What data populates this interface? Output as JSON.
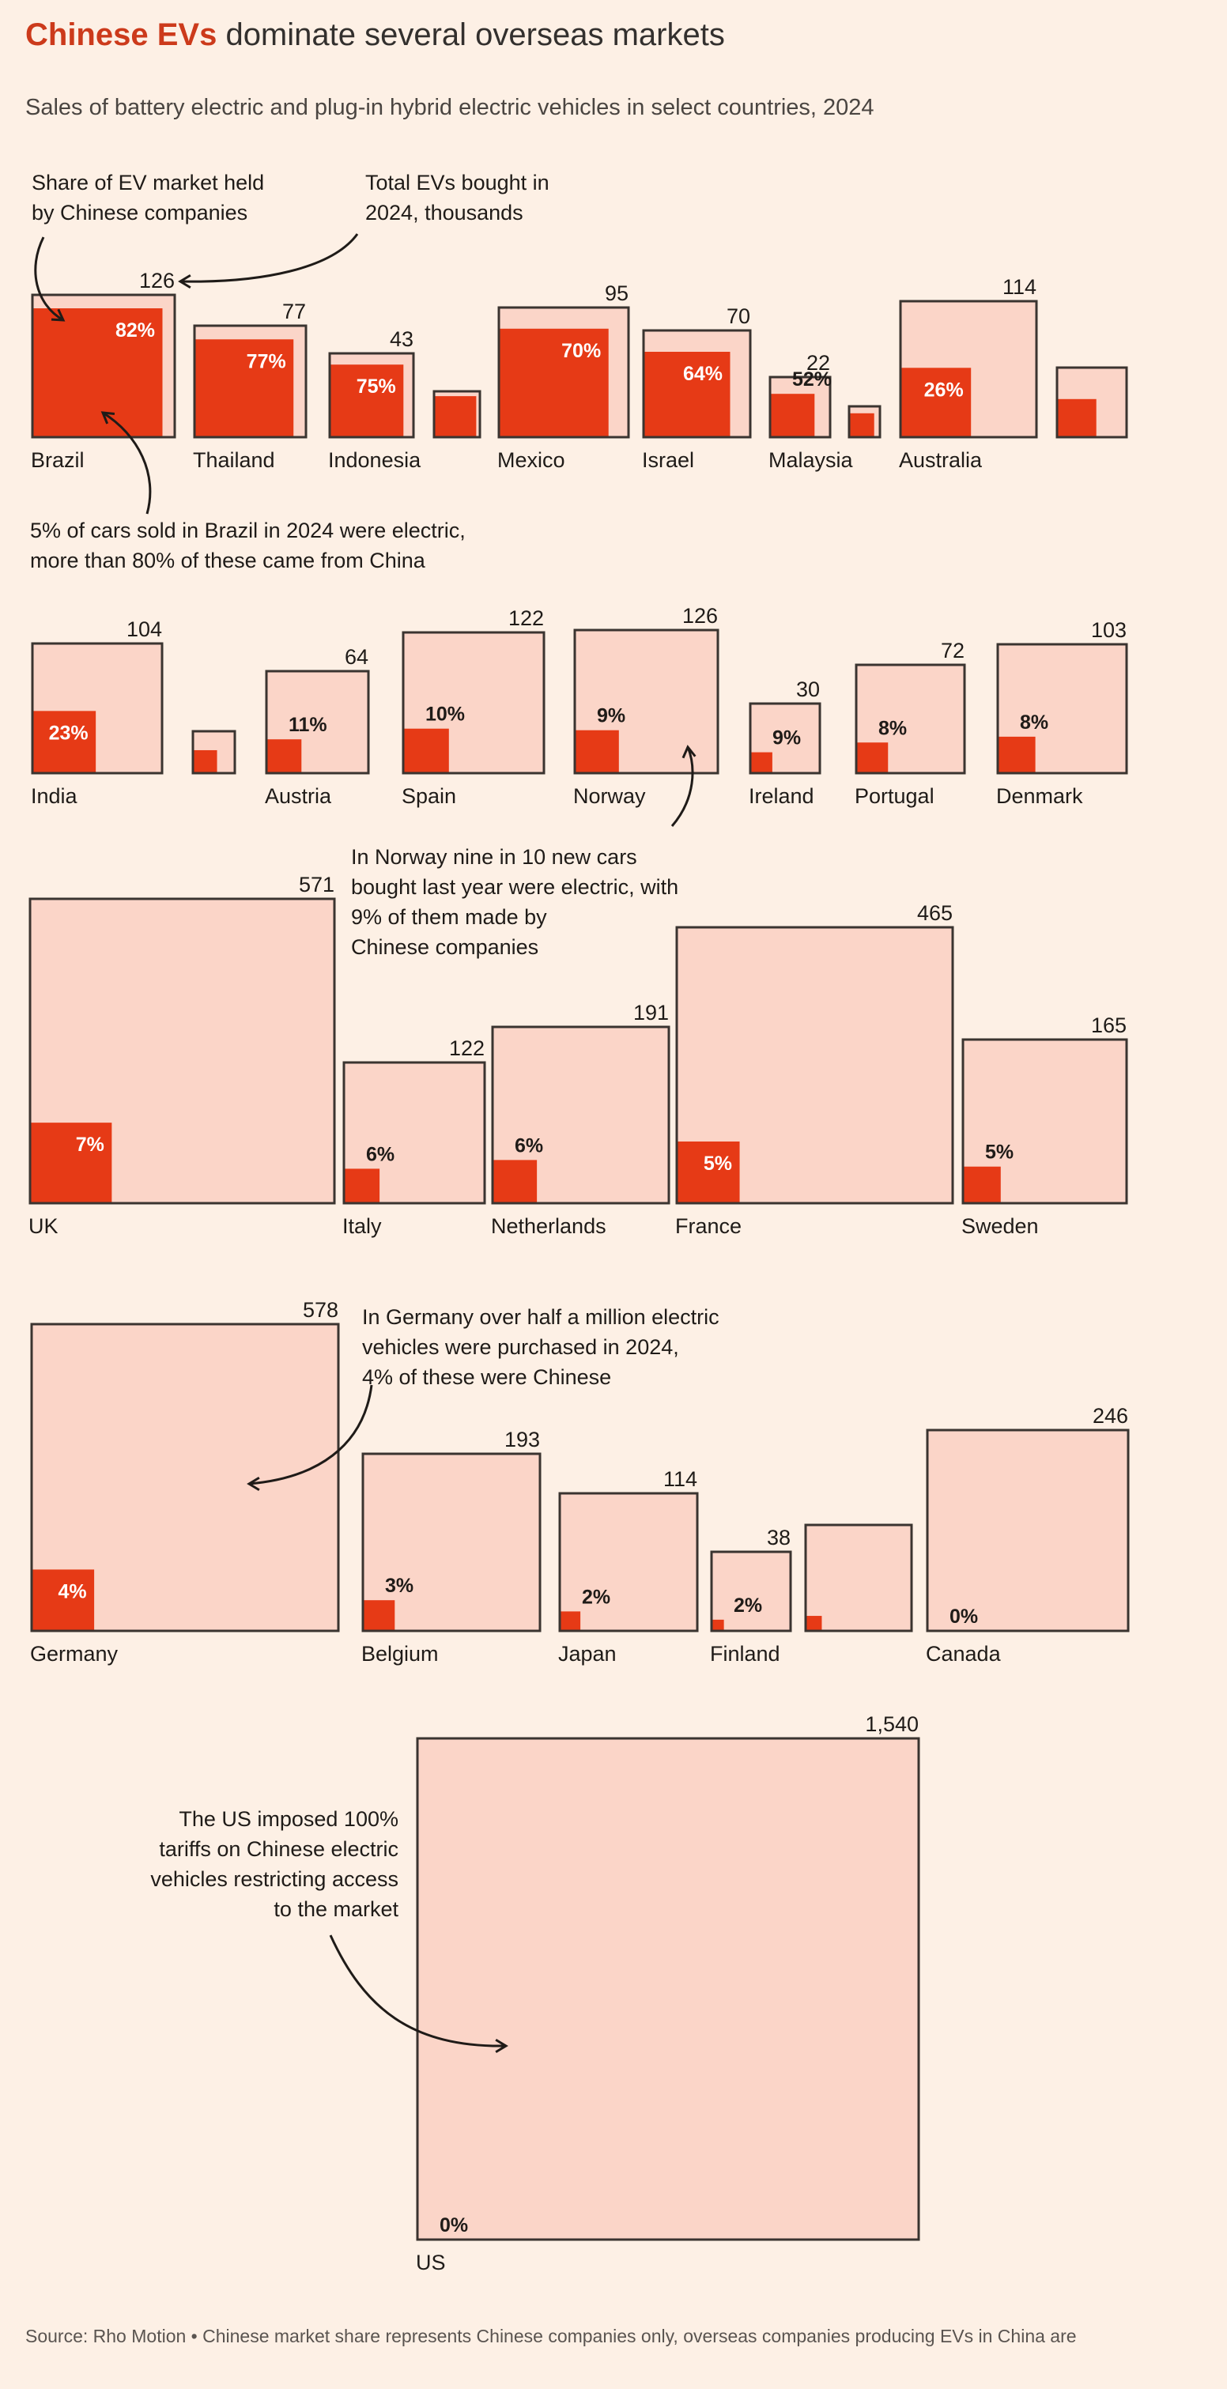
{
  "header": {
    "title_highlight": "Chinese EVs",
    "title_rest": " dominate several overseas markets",
    "subtitle": "Sales of battery electric and plug-in hybrid electric vehicles in select countries, 2024"
  },
  "chart_data": {
    "type": "proportional-square",
    "title": "Chinese EVs dominate several overseas markets",
    "subtitle": "Sales of battery electric and plug-in hybrid electric vehicles in select countries, 2024",
    "value_unit": "Total EVs bought in 2024, thousands",
    "share_unit": "Share of EV market held by Chinese companies (%)",
    "countries": [
      {
        "name": "Brazil",
        "total": "126",
        "share": 82
      },
      {
        "name": "Thailand",
        "total": "77",
        "share": 77
      },
      {
        "name": "Indonesia",
        "total": "43",
        "share": 75
      },
      {
        "name": "",
        "total": "",
        "share": 80
      },
      {
        "name": "Mexico",
        "total": "95",
        "share": 70
      },
      {
        "name": "Israel",
        "total": "70",
        "share": 64
      },
      {
        "name": "Malaysia",
        "total": "22",
        "share": 52
      },
      {
        "name": "",
        "total": "",
        "share": 60
      },
      {
        "name": "Australia",
        "total": "114",
        "share": 26
      },
      {
        "name": "",
        "total": "",
        "share": 30
      },
      {
        "name": "India",
        "total": "104",
        "share": 23
      },
      {
        "name": "",
        "total": "",
        "share": 30
      },
      {
        "name": "Austria",
        "total": "64",
        "share": 11
      },
      {
        "name": "Spain",
        "total": "122",
        "share": 10
      },
      {
        "name": "Norway",
        "total": "126",
        "share": 9
      },
      {
        "name": "Ireland",
        "total": "30",
        "share": 9
      },
      {
        "name": "Portugal",
        "total": "72",
        "share": 8
      },
      {
        "name": "Denmark",
        "total": "103",
        "share": 8
      },
      {
        "name": "UK",
        "total": "571",
        "share": 7
      },
      {
        "name": "Italy",
        "total": "122",
        "share": 6
      },
      {
        "name": "Netherlands",
        "total": "191",
        "share": 6
      },
      {
        "name": "France",
        "total": "465",
        "share": 5
      },
      {
        "name": "Sweden",
        "total": "165",
        "share": 5
      },
      {
        "name": "Germany",
        "total": "578",
        "share": 4
      },
      {
        "name": "Belgium",
        "total": "193",
        "share": 3
      },
      {
        "name": "Japan",
        "total": "114",
        "share": 2
      },
      {
        "name": "Finland",
        "total": "38",
        "share": 2
      },
      {
        "name": "",
        "total": "",
        "share": 2
      },
      {
        "name": "Canada",
        "total": "246",
        "share": 0
      },
      {
        "name": "US",
        "total": "1,540",
        "share": 0
      }
    ]
  },
  "annotations": {
    "share_key": [
      "Share of EV market held",
      "by Chinese companies"
    ],
    "total_key": [
      "Total EVs bought in",
      "2024, thousands"
    ],
    "brazil": [
      "5% of cars sold in Brazil in 2024 were electric,",
      "more than 80% of these came from China"
    ],
    "norway": [
      "In Norway nine in 10 new cars",
      "bought last year were electric, with",
      "9% of them made by",
      "Chinese companies"
    ],
    "germany": [
      "In Germany over half a million electric",
      "vehicles were purchased in 2024,",
      "4% of these were Chinese"
    ],
    "us": [
      "The US imposed 100%",
      "tariffs on Chinese electric",
      "vehicles restricting access",
      "to the market"
    ]
  },
  "source": "Source: Rho Motion • Chinese market share represents Chinese companies only, overseas companies producing EVs in China are",
  "colors": {
    "background": "#fdf0e5",
    "total_square": "#fbd5c8",
    "chinese_share": "#e63a16",
    "title_highlight": "#cc3a1b"
  }
}
